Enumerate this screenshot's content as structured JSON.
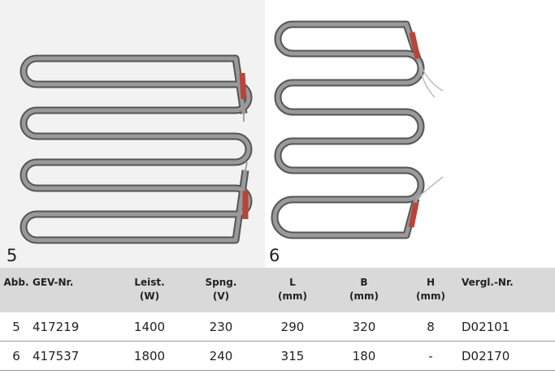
{
  "figures": [
    {
      "label": "5"
    },
    {
      "label": "6"
    }
  ],
  "table": {
    "columns": [
      {
        "label": "Abb."
      },
      {
        "label": "GEV-Nr."
      },
      {
        "label": "Leist.",
        "unit": "(W)"
      },
      {
        "label": "Spng.",
        "unit": "(V)"
      },
      {
        "label": "L",
        "unit": "(mm)"
      },
      {
        "label": "B",
        "unit": "(mm)"
      },
      {
        "label": "H",
        "unit": "(mm)"
      },
      {
        "label": "Vergl.-Nr."
      }
    ],
    "rows": [
      [
        "5",
        "417219",
        "1400",
        "230",
        "290",
        "320",
        "8",
        "D02101"
      ],
      [
        "6",
        "417537",
        "1800",
        "240",
        "315",
        "180",
        "-",
        "D02170"
      ]
    ]
  }
}
